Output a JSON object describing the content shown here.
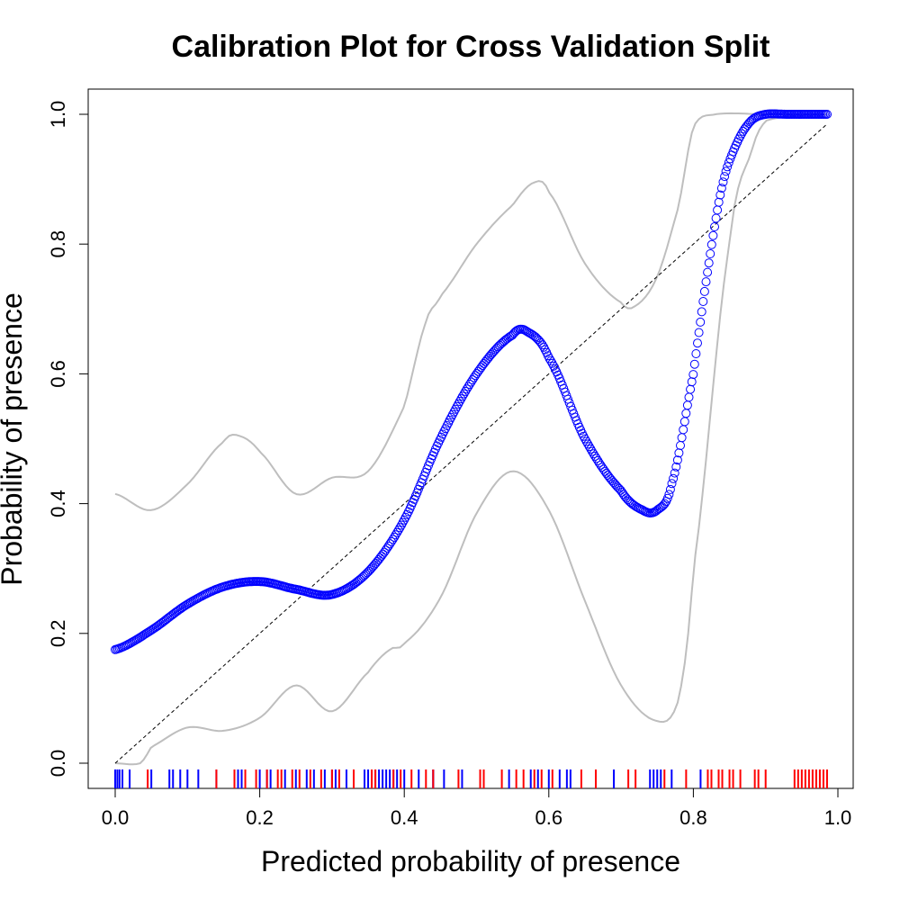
{
  "chart_data": {
    "type": "scatter",
    "title": "Calibration Plot for Cross Validation Split",
    "xlabel": "Predicted probability of presence",
    "ylabel": "Probability of presence",
    "xlim": [
      0.0,
      1.0
    ],
    "ylim": [
      -0.03,
      1.04
    ],
    "x_ticks": [
      "0.0",
      "0.2",
      "0.4",
      "0.6",
      "0.8",
      "1.0"
    ],
    "y_ticks": [
      "0.0",
      "0.2",
      "0.4",
      "0.6",
      "0.8",
      "1.0"
    ],
    "grid": false,
    "legend": "none",
    "colors": {
      "points": "#0000ff",
      "bands": "#bebebe",
      "reference": "#000000",
      "rug_presence": "#ff0000",
      "rug_absence": "#0000ff"
    },
    "series": [
      {
        "role": "calibration-curve",
        "x": [
          0.0,
          0.05,
          0.1,
          0.15,
          0.2,
          0.25,
          0.3,
          0.35,
          0.4,
          0.45,
          0.5,
          0.55,
          0.57,
          0.6,
          0.65,
          0.7,
          0.73,
          0.75,
          0.77,
          0.8,
          0.82,
          0.84,
          0.86,
          0.88,
          0.9,
          0.93,
          0.985
        ],
        "y": [
          0.175,
          0.205,
          0.245,
          0.272,
          0.28,
          0.268,
          0.26,
          0.295,
          0.375,
          0.5,
          0.6,
          0.66,
          0.665,
          0.625,
          0.5,
          0.42,
          0.39,
          0.39,
          0.43,
          0.6,
          0.76,
          0.89,
          0.955,
          0.99,
          1.0,
          1.0,
          1.0
        ]
      },
      {
        "role": "upper-band",
        "x": [
          0.0,
          0.05,
          0.1,
          0.15,
          0.17,
          0.2,
          0.25,
          0.3,
          0.35,
          0.4,
          0.43,
          0.45,
          0.5,
          0.55,
          0.58,
          0.6,
          0.65,
          0.7,
          0.72,
          0.75,
          0.78,
          0.8,
          0.83,
          0.9,
          0.985
        ],
        "y": [
          0.415,
          0.39,
          0.43,
          0.495,
          0.505,
          0.48,
          0.415,
          0.44,
          0.45,
          0.55,
          0.68,
          0.72,
          0.8,
          0.86,
          0.895,
          0.88,
          0.77,
          0.71,
          0.705,
          0.75,
          0.86,
          0.98,
          1.0,
          1.0,
          1.0
        ]
      },
      {
        "role": "lower-band",
        "x": [
          0.0,
          0.035,
          0.05,
          0.1,
          0.15,
          0.2,
          0.25,
          0.3,
          0.35,
          0.38,
          0.4,
          0.45,
          0.5,
          0.55,
          0.6,
          0.65,
          0.7,
          0.75,
          0.78,
          0.8,
          0.85,
          0.88,
          0.9,
          0.985
        ],
        "y": [
          0.0,
          0.0,
          0.025,
          0.055,
          0.05,
          0.07,
          0.12,
          0.08,
          0.14,
          0.175,
          0.185,
          0.255,
          0.385,
          0.45,
          0.39,
          0.25,
          0.12,
          0.065,
          0.1,
          0.3,
          0.8,
          0.94,
          0.99,
          1.0
        ]
      },
      {
        "role": "reference-line",
        "x": [
          0.0,
          0.985
        ],
        "y": [
          0.0,
          0.985
        ]
      }
    ],
    "rug_presence": [
      0.045,
      0.14,
      0.165,
      0.18,
      0.195,
      0.21,
      0.225,
      0.23,
      0.245,
      0.255,
      0.27,
      0.285,
      0.3,
      0.31,
      0.33,
      0.355,
      0.36,
      0.385,
      0.395,
      0.41,
      0.43,
      0.44,
      0.475,
      0.505,
      0.51,
      0.535,
      0.555,
      0.565,
      0.58,
      0.59,
      0.605,
      0.645,
      0.665,
      0.71,
      0.72,
      0.76,
      0.79,
      0.82,
      0.825,
      0.835,
      0.84,
      0.85,
      0.855,
      0.865,
      0.885,
      0.89,
      0.9,
      0.94,
      0.945,
      0.95,
      0.955,
      0.96,
      0.965,
      0.97,
      0.975,
      0.98,
      0.985
    ],
    "rug_absence": [
      0.0,
      0.003,
      0.006,
      0.01,
      0.02,
      0.05,
      0.075,
      0.08,
      0.09,
      0.1,
      0.115,
      0.14,
      0.17,
      0.175,
      0.2,
      0.21,
      0.215,
      0.235,
      0.25,
      0.265,
      0.275,
      0.29,
      0.3,
      0.305,
      0.32,
      0.345,
      0.35,
      0.36,
      0.365,
      0.37,
      0.375,
      0.38,
      0.385,
      0.39,
      0.4,
      0.42,
      0.44,
      0.44,
      0.455,
      0.48,
      0.545,
      0.575,
      0.585,
      0.6,
      0.615,
      0.625,
      0.63,
      0.69,
      0.74,
      0.745,
      0.75,
      0.755,
      0.77,
      0.81
    ]
  }
}
